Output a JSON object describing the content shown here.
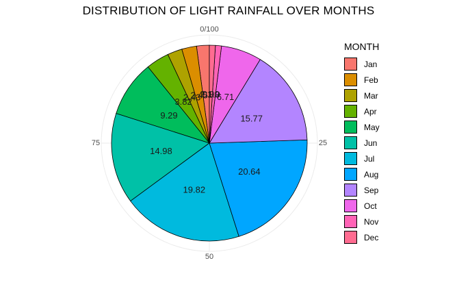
{
  "chart_data": {
    "type": "pie",
    "title": "DISTRIBUTION OF LIGHT RAINFALL OVER MONTHS",
    "legend_title": "MONTH",
    "legend_position": "right",
    "coord": "polar",
    "theta_range": [
      0,
      100
    ],
    "theta_ticks": [
      "0/100",
      "25",
      "50",
      "75"
    ],
    "slices": [
      {
        "label": "Jan",
        "value": 2.1,
        "color": "#F8766D",
        "data_label": "2.1"
      },
      {
        "label": "Feb",
        "value": 2.45,
        "color": "#DB8E00",
        "data_label": "2.45"
      },
      {
        "label": "Mar",
        "value": 2.43,
        "color": "#AEA200",
        "data_label": "2.43"
      },
      {
        "label": "Apr",
        "value": 3.82,
        "color": "#64B200",
        "data_label": "3.82"
      },
      {
        "label": "May",
        "value": 9.29,
        "color": "#00BD5C",
        "data_label": "9.29"
      },
      {
        "label": "Jun",
        "value": 14.98,
        "color": "#00C1A7",
        "data_label": "14.98"
      },
      {
        "label": "Jul",
        "value": 19.82,
        "color": "#00BADE",
        "data_label": "19.82"
      },
      {
        "label": "Aug",
        "value": 20.64,
        "color": "#00A6FF",
        "data_label": "20.64"
      },
      {
        "label": "Sep",
        "value": 15.77,
        "color": "#B385FF",
        "data_label": "15.77"
      },
      {
        "label": "Oct",
        "value": 6.71,
        "color": "#EF67EB",
        "data_label": "6.71"
      },
      {
        "label": "Nov",
        "value": 1.0,
        "color": "#FF63B6",
        "data_label": "1.0"
      },
      {
        "label": "Dec",
        "value": 0.99,
        "color": "#FF6C91",
        "data_label": "0.99"
      }
    ]
  }
}
